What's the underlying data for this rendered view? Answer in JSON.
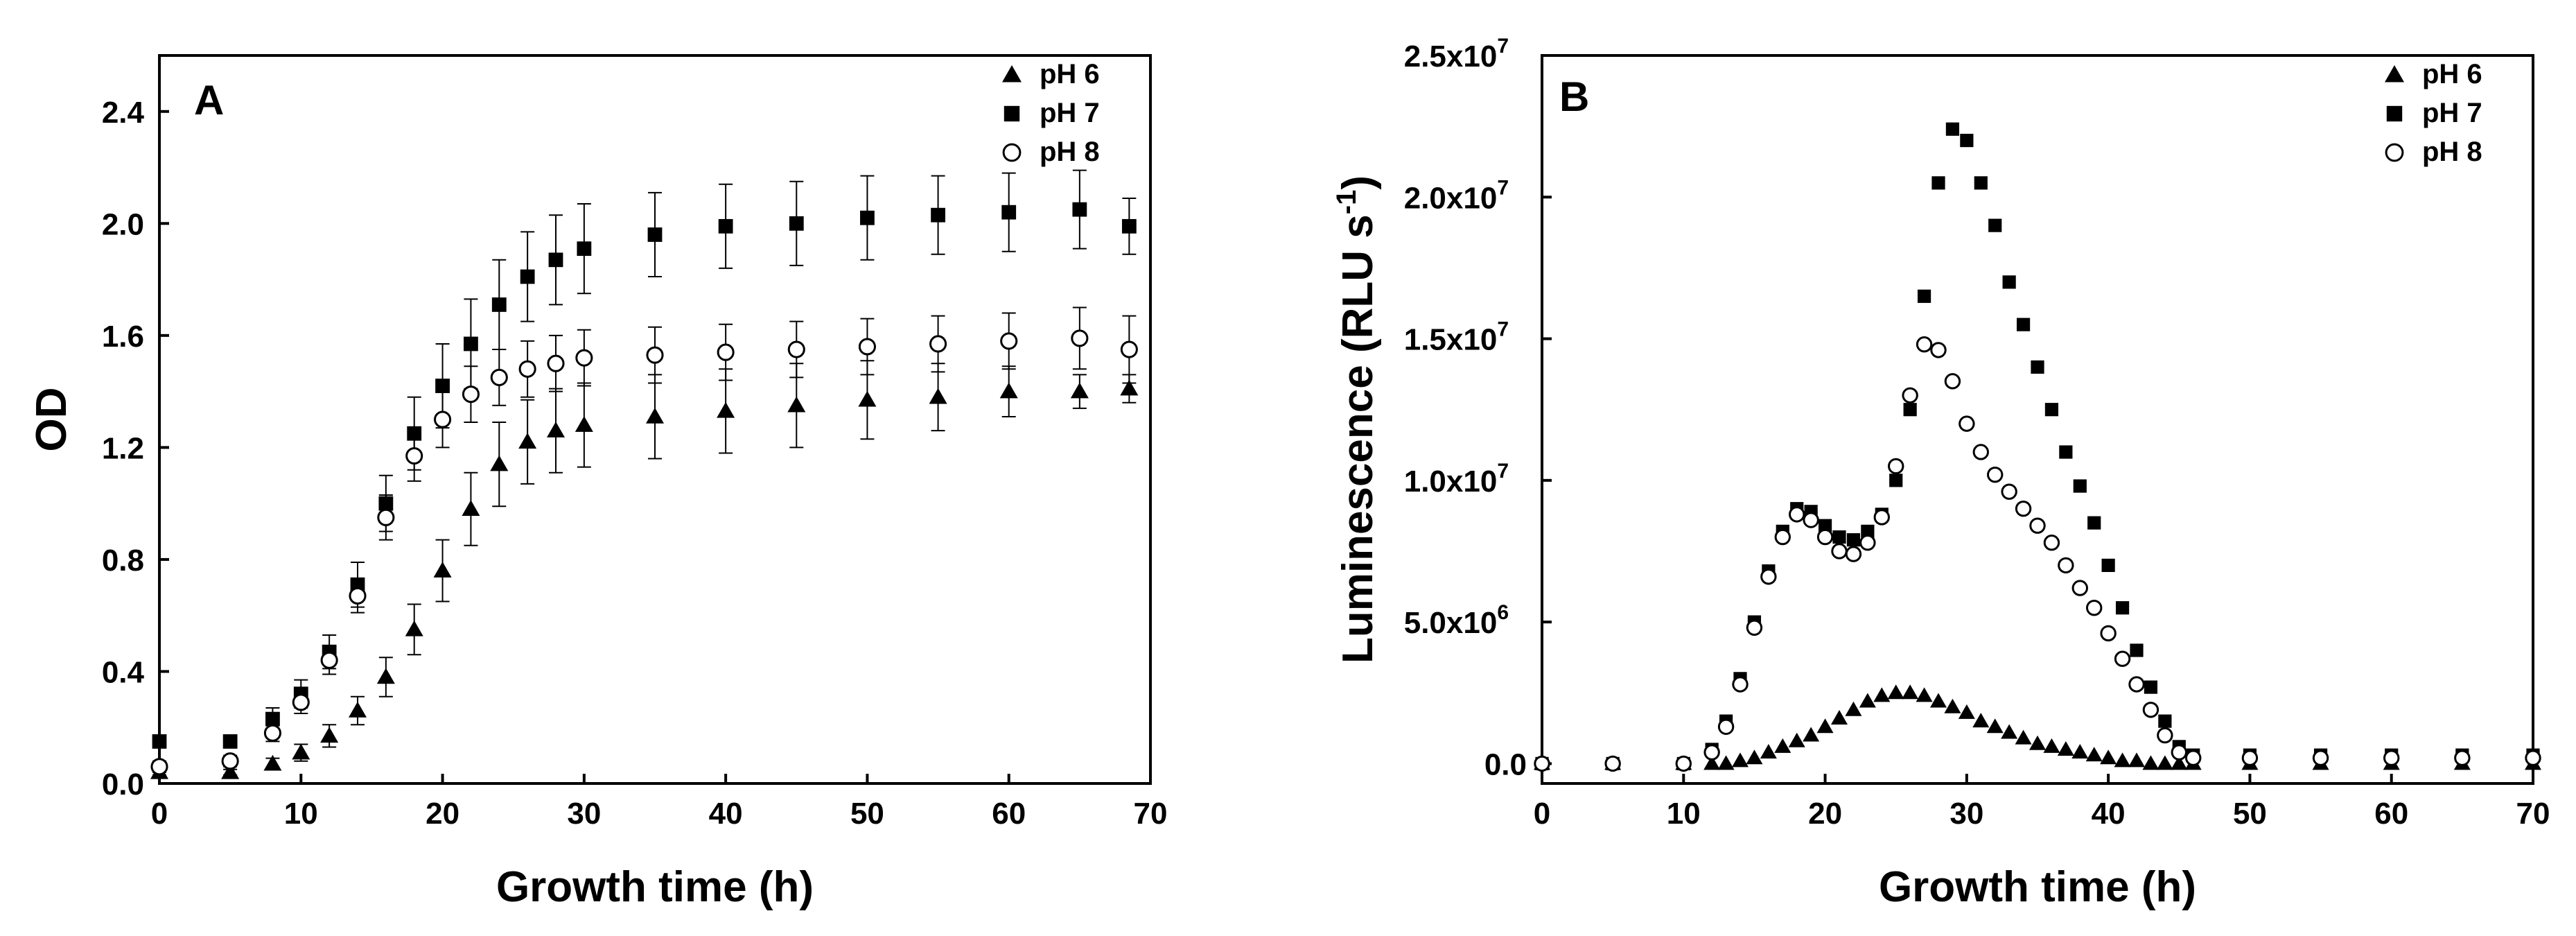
{
  "chart_data": [
    {
      "type": "scatter",
      "panel_label": "A",
      "xlabel": "Growth time (h)",
      "ylabel": "OD",
      "xlim": [
        0,
        70
      ],
      "ylim": [
        0,
        2.6
      ],
      "x_ticks": [
        "0",
        "10",
        "20",
        "30",
        "40",
        "50",
        "60",
        "70"
      ],
      "y_ticks": [
        "0.0",
        "0.4",
        "0.8",
        "1.2",
        "1.6",
        "2.0",
        "2.4"
      ],
      "legend_position": "top-right",
      "x": [
        0,
        5,
        8,
        10,
        12,
        14,
        16,
        18,
        20,
        22,
        24,
        26,
        28,
        30,
        35,
        40,
        45,
        50,
        55,
        60,
        65,
        68.5
      ],
      "series": [
        {
          "name": "pH 6",
          "marker": "triangle-filled",
          "values": [
            0.04,
            0.04,
            0.07,
            0.11,
            0.17,
            0.26,
            0.38,
            0.55,
            0.76,
            0.98,
            1.14,
            1.22,
            1.26,
            1.28,
            1.31,
            1.33,
            1.35,
            1.37,
            1.38,
            1.4,
            1.4,
            1.41
          ],
          "error": [
            0.01,
            0.01,
            0.02,
            0.03,
            0.04,
            0.05,
            0.07,
            0.09,
            0.11,
            0.13,
            0.15,
            0.15,
            0.15,
            0.15,
            0.15,
            0.15,
            0.15,
            0.14,
            0.12,
            0.09,
            0.06,
            0.05
          ]
        },
        {
          "name": "pH 7",
          "marker": "square-filled",
          "values": [
            0.15,
            0.15,
            0.23,
            0.32,
            0.47,
            0.71,
            1.0,
            1.25,
            1.42,
            1.57,
            1.71,
            1.81,
            1.87,
            1.91,
            1.96,
            1.99,
            2.0,
            2.02,
            2.03,
            2.04,
            2.05,
            1.99
          ],
          "error": [
            0.02,
            0.02,
            0.04,
            0.05,
            0.06,
            0.08,
            0.1,
            0.13,
            0.15,
            0.16,
            0.16,
            0.16,
            0.16,
            0.16,
            0.15,
            0.15,
            0.15,
            0.15,
            0.14,
            0.14,
            0.14,
            0.1
          ]
        },
        {
          "name": "pH 8",
          "marker": "circle-open",
          "values": [
            0.06,
            0.08,
            0.18,
            0.29,
            0.44,
            0.67,
            0.95,
            1.17,
            1.3,
            1.39,
            1.45,
            1.48,
            1.5,
            1.52,
            1.53,
            1.54,
            1.55,
            1.56,
            1.57,
            1.58,
            1.59,
            1.55
          ],
          "error": [
            0.02,
            0.02,
            0.03,
            0.04,
            0.05,
            0.06,
            0.08,
            0.09,
            0.1,
            0.1,
            0.1,
            0.1,
            0.1,
            0.1,
            0.1,
            0.1,
            0.1,
            0.1,
            0.1,
            0.1,
            0.11,
            0.12
          ]
        }
      ]
    },
    {
      "type": "scatter",
      "panel_label": "B",
      "xlabel": "Growth time (h)",
      "ylabel": "Luminescence (RLU s",
      "ylabel_sup": "-1",
      "ylabel_end": ")",
      "xlim": [
        0,
        70
      ],
      "ylim": [
        -700000,
        25000000
      ],
      "x_ticks": [
        "0",
        "10",
        "20",
        "30",
        "40",
        "50",
        "60",
        "70"
      ],
      "y_ticks": [
        {
          "value": 0,
          "text": "0.0",
          "sup": ""
        },
        {
          "value": 5000000,
          "text": "5.0x10",
          "sup": "6"
        },
        {
          "value": 10000000,
          "text": "1.0x10",
          "sup": "7"
        },
        {
          "value": 15000000,
          "text": "1.5x10",
          "sup": "7"
        },
        {
          "value": 20000000,
          "text": "2.0x10",
          "sup": "7"
        },
        {
          "value": 25000000,
          "text": "2.5x10",
          "sup": "7"
        }
      ],
      "legend_position": "top-right",
      "x": [
        0,
        5,
        10,
        12,
        13,
        14,
        15,
        16,
        17,
        18,
        19,
        20,
        21,
        22,
        23,
        24,
        25,
        26,
        27,
        28,
        29,
        30,
        31,
        32,
        33,
        34,
        35,
        36,
        37,
        38,
        39,
        40,
        41,
        42,
        43,
        44,
        45,
        46,
        50,
        55,
        60,
        65,
        70
      ],
      "series": [
        {
          "name": "pH 6",
          "marker": "triangle-filled",
          "values": [
            0,
            0,
            0,
            0,
            0,
            100000,
            200000,
            400000,
            600000,
            800000,
            1000000,
            1300000,
            1600000,
            1900000,
            2200000,
            2400000,
            2500000,
            2500000,
            2400000,
            2200000,
            2000000,
            1800000,
            1500000,
            1300000,
            1100000,
            900000,
            700000,
            600000,
            500000,
            400000,
            300000,
            200000,
            100000,
            100000,
            0,
            0,
            0,
            0,
            0,
            0,
            0,
            0,
            0
          ]
        },
        {
          "name": "pH 7",
          "marker": "square-filled",
          "values": [
            0,
            0,
            0,
            500000,
            1500000,
            3000000,
            5000000,
            6800000,
            8200000,
            9000000,
            8900000,
            8400000,
            8000000,
            7900000,
            8200000,
            8800000,
            10000000,
            12500000,
            16500000,
            20500000,
            22400000,
            22000000,
            20500000,
            19000000,
            17000000,
            15500000,
            14000000,
            12500000,
            11000000,
            9800000,
            8500000,
            7000000,
            5500000,
            4000000,
            2700000,
            1500000,
            600000,
            300000,
            300000,
            300000,
            300000,
            300000,
            300000
          ]
        },
        {
          "name": "pH 8",
          "marker": "circle-open",
          "values": [
            0,
            0,
            0,
            400000,
            1300000,
            2800000,
            4800000,
            6600000,
            8000000,
            8800000,
            8600000,
            8000000,
            7500000,
            7400000,
            7800000,
            8700000,
            10500000,
            13000000,
            14800000,
            14600000,
            13500000,
            12000000,
            11000000,
            10200000,
            9600000,
            9000000,
            8400000,
            7800000,
            7000000,
            6200000,
            5500000,
            4600000,
            3700000,
            2800000,
            1900000,
            1000000,
            400000,
            200000,
            200000,
            200000,
            200000,
            200000,
            200000
          ]
        }
      ]
    }
  ]
}
